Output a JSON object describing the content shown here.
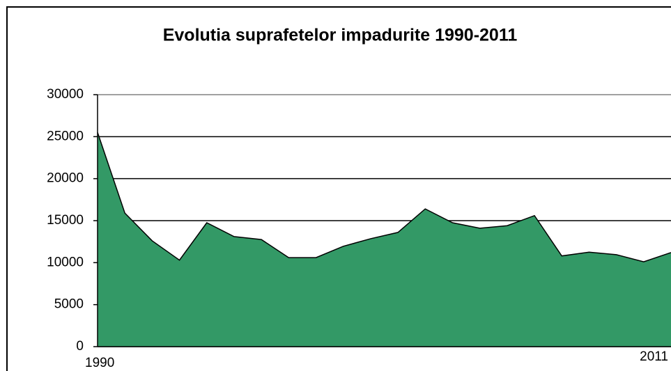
{
  "chart_data": {
    "type": "area",
    "title": "Evolutia suprafetelor impadurite 1990-2011",
    "categories": [
      "1990",
      null,
      null,
      null,
      null,
      null,
      null,
      null,
      null,
      null,
      null,
      null,
      null,
      null,
      null,
      null,
      null,
      null,
      null,
      null,
      null,
      "2011"
    ],
    "values": [
      25500,
      15900,
      12600,
      10300,
      14750,
      13100,
      12750,
      10600,
      10600,
      11950,
      12850,
      13600,
      16400,
      14750,
      14100,
      14400,
      15600,
      10800,
      11250,
      10950,
      10100,
      11200
    ],
    "color": "#339966",
    "ylim": [
      0,
      30000
    ],
    "yticks": [
      0,
      5000,
      10000,
      15000,
      20000,
      25000,
      30000
    ],
    "grid": true
  }
}
